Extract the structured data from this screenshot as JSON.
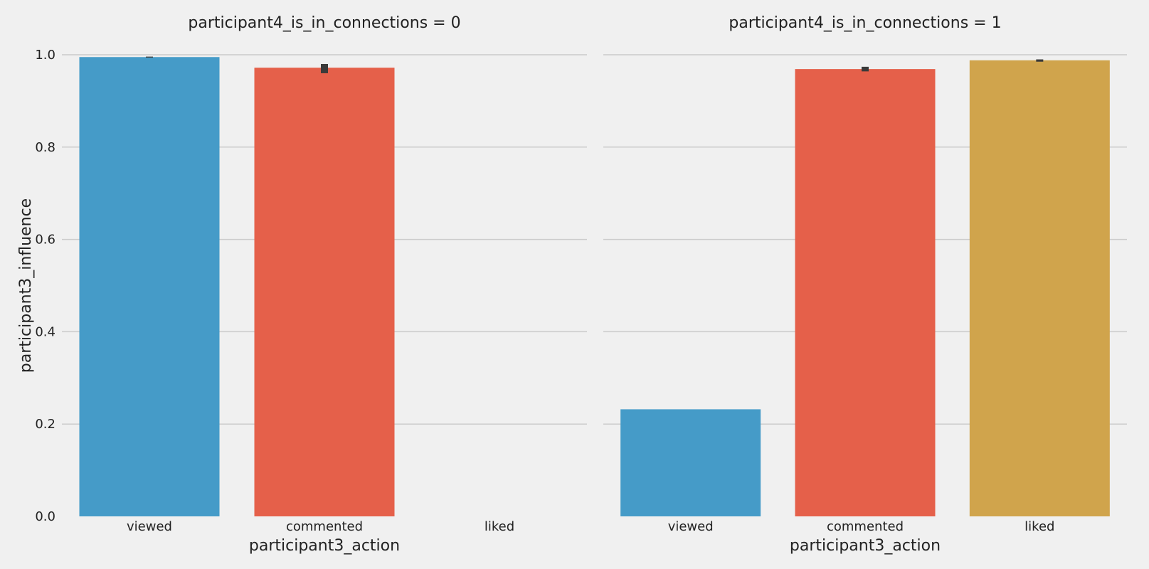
{
  "chart_data": [
    {
      "type": "bar",
      "title": "participant4_is_in_connections = 0",
      "xlabel": "participant3_action",
      "ylabel": "participant3_influence",
      "categories": [
        "viewed",
        "commented",
        "liked"
      ],
      "values": [
        0.995,
        0.972,
        null
      ],
      "error_bars": [
        [
          0.994,
          0.996
        ],
        [
          0.96,
          0.98
        ],
        null
      ],
      "colors": [
        "#459bc8",
        "#e5604a",
        "#d0a44c"
      ],
      "ylim": [
        0,
        1.0
      ],
      "yticks": [
        "0.0",
        "0.2",
        "0.4",
        "0.6",
        "0.8",
        "1.0"
      ],
      "grid": "horizontal"
    },
    {
      "type": "bar",
      "title": "participant4_is_in_connections = 1",
      "xlabel": "participant3_action",
      "ylabel": "",
      "categories": [
        "viewed",
        "commented",
        "liked"
      ],
      "values": [
        0.232,
        0.969,
        0.988
      ],
      "error_bars": [
        null,
        [
          0.964,
          0.974
        ],
        [
          0.985,
          0.99
        ]
      ],
      "colors": [
        "#459bc8",
        "#e5604a",
        "#d0a44c"
      ],
      "ylim": [
        0,
        1.0
      ],
      "yticks": [],
      "grid": "horizontal"
    }
  ]
}
